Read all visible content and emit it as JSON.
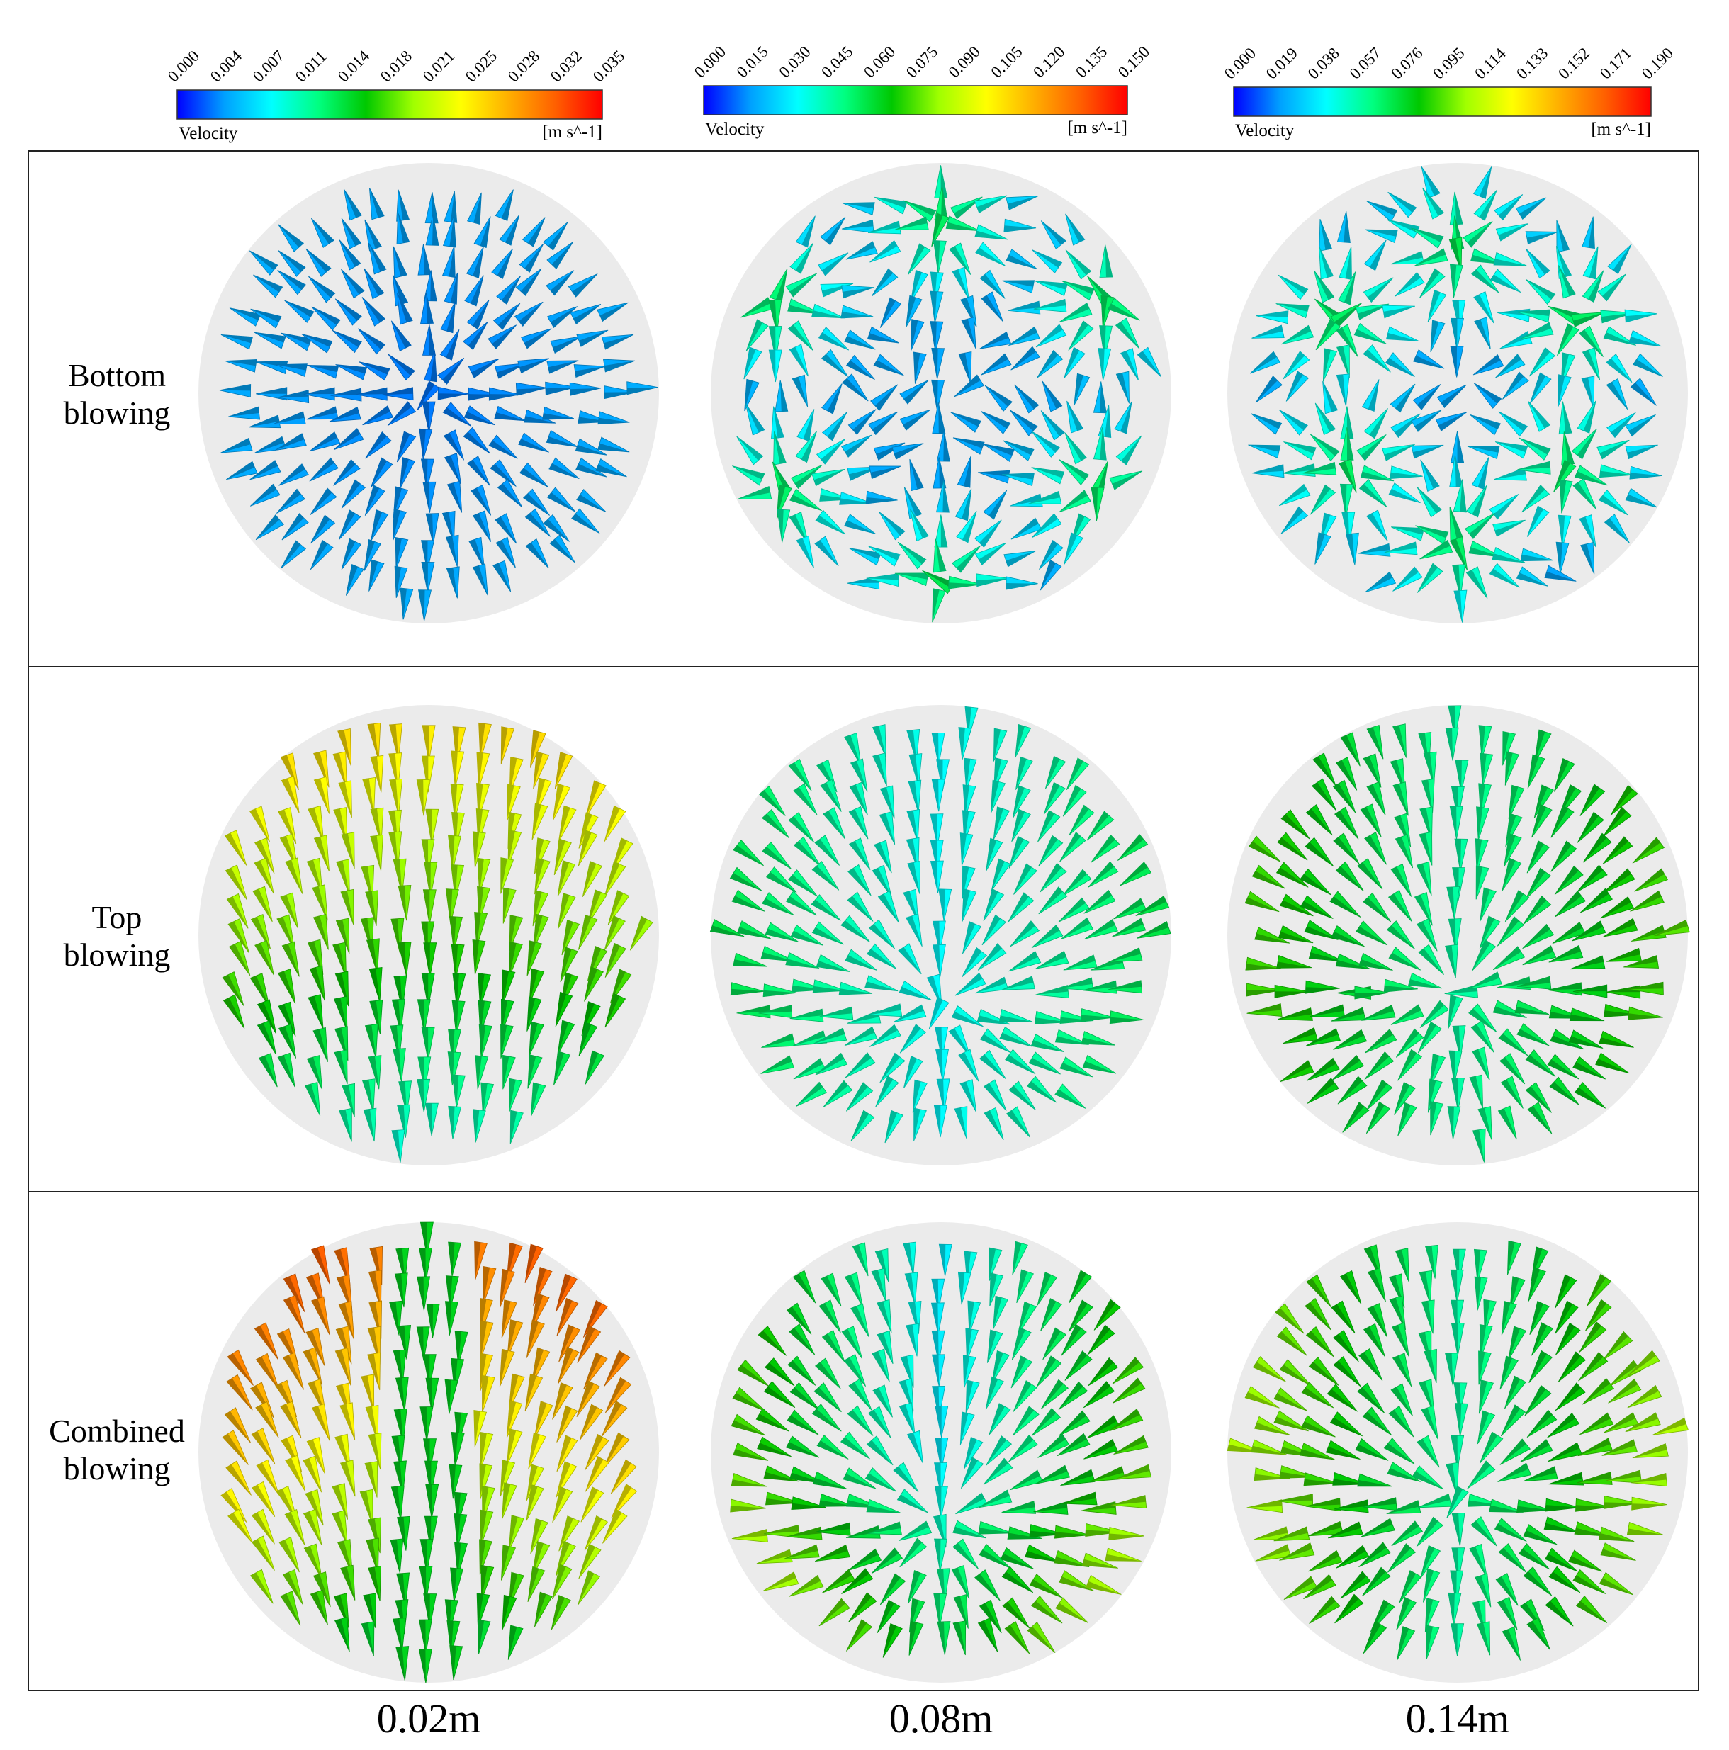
{
  "colorbars": [
    {
      "ticks": [
        "0.000",
        "0.004",
        "0.007",
        "0.011",
        "0.014",
        "0.018",
        "0.021",
        "0.025",
        "0.028",
        "0.032",
        "0.035"
      ],
      "label": "Velocity",
      "unit": "[m s^-1]"
    },
    {
      "ticks": [
        "0.000",
        "0.015",
        "0.030",
        "0.045",
        "0.060",
        "0.075",
        "0.090",
        "0.105",
        "0.120",
        "0.135",
        "0.150"
      ],
      "label": "Velocity",
      "unit": "[m s^-1]"
    },
    {
      "ticks": [
        "0.000",
        "0.019",
        "0.038",
        "0.057",
        "0.076",
        "0.095",
        "0.114",
        "0.133",
        "0.152",
        "0.171",
        "0.190"
      ],
      "label": "Velocity",
      "unit": "[m s^-1]"
    }
  ],
  "colormap": [
    "#0000ff",
    "#00a0ff",
    "#00ffff",
    "#00ff80",
    "#00c800",
    "#a0ff00",
    "#ffff00",
    "#ffb000",
    "#ff6000",
    "#ff0000"
  ],
  "rows": [
    {
      "label_line1": "Bottom",
      "label_line2": "blowing",
      "pattern": "bottom"
    },
    {
      "label_line1": "Top",
      "label_line2": "blowing",
      "pattern": "top"
    },
    {
      "label_line1": "Combined",
      "label_line2": "blowing",
      "pattern": "combined"
    }
  ],
  "columns": [
    "0.02m",
    "0.08m",
    "0.14m"
  ]
}
